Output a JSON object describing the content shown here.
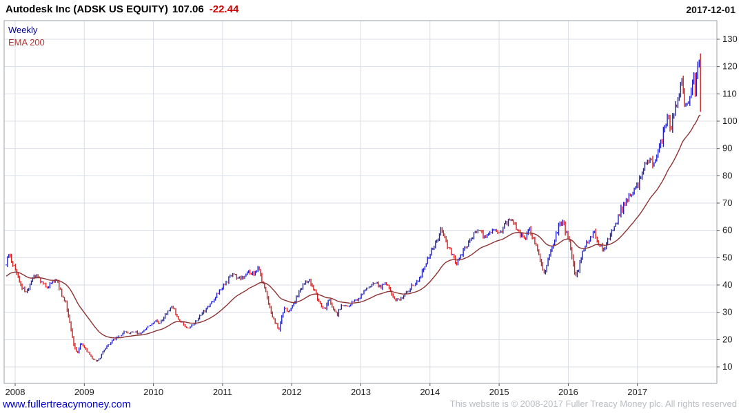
{
  "header": {
    "title": "Autodesk Inc (ADSK US EQUITY)",
    "price": "107.06",
    "change": "-22.44",
    "date": "2017-12-01"
  },
  "legend": {
    "series1": "Weekly",
    "series2": "EMA 200"
  },
  "footer": {
    "site": "www.fullertreacymoney.com",
    "copyright": "This website is © 2008-2017 Fuller Treacy Money plc. All rights reserved"
  },
  "colors": {
    "up": "#2020c0",
    "down": "#d21f1f",
    "ema": "#8b3232",
    "grid": "#dadde6",
    "border": "#9aa0a6",
    "axis_text": "#1a1a1a",
    "change_text": "#cc0000",
    "link": "#0000cc",
    "copyright_text": "#b9bcc2"
  },
  "chart_data": {
    "type": "candlestick",
    "title": "Autodesk Inc (ADSK US EQUITY)",
    "frequency": "Weekly",
    "overlay": "EMA 200",
    "last_price": 107.06,
    "change": -22.44,
    "as_of_date": "2017-12-01",
    "x_ticks": [
      2008,
      2009,
      2010,
      2011,
      2012,
      2013,
      2014,
      2015,
      2016,
      2017
    ],
    "y_ticks": [
      10,
      20,
      30,
      40,
      50,
      60,
      70,
      80,
      90,
      100,
      110,
      120,
      130
    ],
    "ylim": [
      4,
      137
    ],
    "x_first": 2007.87,
    "x_last": 2017.93,
    "ema_weeks": 40,
    "ema_start": 43,
    "grid": true,
    "legend_position": "top-left",
    "anchors": [
      [
        2007.87,
        48
      ],
      [
        2007.9,
        51
      ],
      [
        2007.94,
        49
      ],
      [
        2008.0,
        46
      ],
      [
        2008.04,
        43
      ],
      [
        2008.1,
        39
      ],
      [
        2008.16,
        37
      ],
      [
        2008.22,
        41
      ],
      [
        2008.3,
        44
      ],
      [
        2008.38,
        41
      ],
      [
        2008.46,
        39
      ],
      [
        2008.52,
        41
      ],
      [
        2008.6,
        42
      ],
      [
        2008.68,
        36
      ],
      [
        2008.74,
        33
      ],
      [
        2008.8,
        25
      ],
      [
        2008.85,
        18
      ],
      [
        2008.9,
        15
      ],
      [
        2008.95,
        19
      ],
      [
        2009.0,
        17
      ],
      [
        2009.06,
        15
      ],
      [
        2009.12,
        13
      ],
      [
        2009.18,
        12
      ],
      [
        2009.22,
        13
      ],
      [
        2009.28,
        16
      ],
      [
        2009.35,
        18
      ],
      [
        2009.42,
        20
      ],
      [
        2009.5,
        21
      ],
      [
        2009.58,
        23
      ],
      [
        2009.65,
        22
      ],
      [
        2009.72,
        23
      ],
      [
        2009.8,
        22
      ],
      [
        2009.88,
        24
      ],
      [
        2009.95,
        25
      ],
      [
        2010.02,
        27
      ],
      [
        2010.08,
        26
      ],
      [
        2010.15,
        28
      ],
      [
        2010.22,
        31
      ],
      [
        2010.28,
        32
      ],
      [
        2010.35,
        28
      ],
      [
        2010.42,
        26
      ],
      [
        2010.5,
        24
      ],
      [
        2010.58,
        26
      ],
      [
        2010.65,
        28
      ],
      [
        2010.72,
        30
      ],
      [
        2010.8,
        32
      ],
      [
        2010.88,
        35
      ],
      [
        2010.95,
        38
      ],
      [
        2011.02,
        40
      ],
      [
        2011.08,
        42
      ],
      [
        2011.15,
        44
      ],
      [
        2011.22,
        42
      ],
      [
        2011.3,
        43
      ],
      [
        2011.38,
        45
      ],
      [
        2011.45,
        44
      ],
      [
        2011.52,
        46
      ],
      [
        2011.58,
        41
      ],
      [
        2011.64,
        36
      ],
      [
        2011.7,
        30
      ],
      [
        2011.76,
        26
      ],
      [
        2011.82,
        24
      ],
      [
        2011.86,
        29
      ],
      [
        2011.9,
        32
      ],
      [
        2011.95,
        30
      ],
      [
        2012.0,
        32
      ],
      [
        2012.06,
        35
      ],
      [
        2012.12,
        38
      ],
      [
        2012.18,
        41
      ],
      [
        2012.24,
        42
      ],
      [
        2012.3,
        40
      ],
      [
        2012.36,
        36
      ],
      [
        2012.42,
        33
      ],
      [
        2012.48,
        31
      ],
      [
        2012.54,
        35
      ],
      [
        2012.6,
        31
      ],
      [
        2012.66,
        29
      ],
      [
        2012.72,
        33
      ],
      [
        2012.78,
        32
      ],
      [
        2012.85,
        33
      ],
      [
        2012.92,
        34
      ],
      [
        2013.0,
        36
      ],
      [
        2013.08,
        39
      ],
      [
        2013.15,
        40
      ],
      [
        2013.22,
        41
      ],
      [
        2013.28,
        39
      ],
      [
        2013.35,
        41
      ],
      [
        2013.42,
        38
      ],
      [
        2013.48,
        35
      ],
      [
        2013.55,
        34
      ],
      [
        2013.62,
        36
      ],
      [
        2013.68,
        38
      ],
      [
        2013.75,
        40
      ],
      [
        2013.82,
        41
      ],
      [
        2013.88,
        44
      ],
      [
        2013.94,
        48
      ],
      [
        2014.0,
        51
      ],
      [
        2014.06,
        54
      ],
      [
        2014.12,
        57
      ],
      [
        2014.16,
        62
      ],
      [
        2014.2,
        58
      ],
      [
        2014.26,
        54
      ],
      [
        2014.32,
        51
      ],
      [
        2014.38,
        48
      ],
      [
        2014.45,
        51
      ],
      [
        2014.52,
        54
      ],
      [
        2014.58,
        56
      ],
      [
        2014.65,
        59
      ],
      [
        2014.72,
        61
      ],
      [
        2014.78,
        57
      ],
      [
        2014.85,
        59
      ],
      [
        2014.92,
        61
      ],
      [
        2015.0,
        59
      ],
      [
        2015.06,
        61
      ],
      [
        2015.12,
        63
      ],
      [
        2015.18,
        64
      ],
      [
        2015.25,
        61
      ],
      [
        2015.32,
        58
      ],
      [
        2015.38,
        57
      ],
      [
        2015.44,
        60
      ],
      [
        2015.5,
        57
      ],
      [
        2015.56,
        53
      ],
      [
        2015.62,
        47
      ],
      [
        2015.66,
        44
      ],
      [
        2015.7,
        49
      ],
      [
        2015.76,
        53
      ],
      [
        2015.82,
        58
      ],
      [
        2015.88,
        62
      ],
      [
        2015.92,
        63
      ],
      [
        2015.97,
        59
      ],
      [
        2016.02,
        55
      ],
      [
        2016.06,
        49
      ],
      [
        2016.1,
        43
      ],
      [
        2016.15,
        46
      ],
      [
        2016.2,
        51
      ],
      [
        2016.26,
        55
      ],
      [
        2016.32,
        57
      ],
      [
        2016.38,
        59
      ],
      [
        2016.44,
        55
      ],
      [
        2016.5,
        53
      ],
      [
        2016.56,
        56
      ],
      [
        2016.62,
        59
      ],
      [
        2016.68,
        62
      ],
      [
        2016.74,
        66
      ],
      [
        2016.8,
        69
      ],
      [
        2016.86,
        72
      ],
      [
        2016.92,
        74
      ],
      [
        2016.98,
        75
      ],
      [
        2017.04,
        79
      ],
      [
        2017.1,
        83
      ],
      [
        2017.16,
        86
      ],
      [
        2017.22,
        85
      ],
      [
        2017.28,
        88
      ],
      [
        2017.34,
        92
      ],
      [
        2017.4,
        97
      ],
      [
        2017.44,
        101
      ],
      [
        2017.48,
        97
      ],
      [
        2017.52,
        101
      ],
      [
        2017.56,
        106
      ],
      [
        2017.6,
        111
      ],
      [
        2017.64,
        114
      ],
      [
        2017.68,
        108
      ],
      [
        2017.71,
        103
      ],
      [
        2017.74,
        108
      ],
      [
        2017.78,
        113
      ],
      [
        2017.81,
        117
      ],
      [
        2017.84,
        112
      ],
      [
        2017.87,
        118
      ],
      [
        2017.895,
        124
      ],
      [
        2017.915,
        130
      ],
      [
        2017.93,
        107
      ]
    ]
  }
}
